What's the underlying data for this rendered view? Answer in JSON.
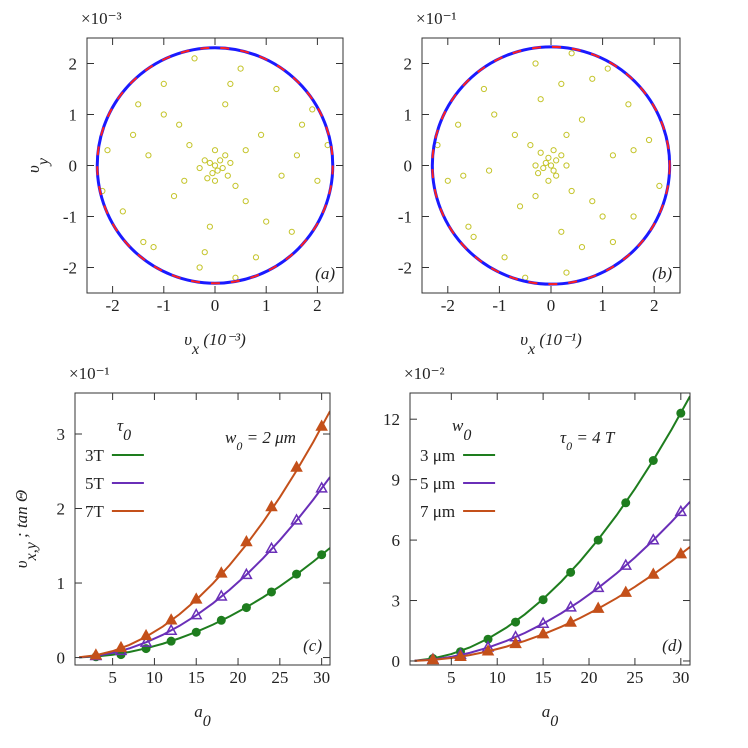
{
  "chart_data": [
    {
      "type": "scatter",
      "panel_label": "(a)",
      "multiplier": "×10⁻³",
      "x_label": [
        {
          "text": "υ"
        },
        {
          "text": "x",
          "sub": true
        },
        {
          "text": " (10⁻³)"
        }
      ],
      "y_label": [
        {
          "text": "υ"
        },
        {
          "text": "y",
          "sub": true
        }
      ],
      "xlim": [
        -2.5,
        2.5
      ],
      "ylim": [
        -2.5,
        2.5
      ],
      "xticks": [
        -2,
        -1,
        0,
        1,
        2
      ],
      "yticks": [
        -2,
        -1,
        0,
        1,
        2
      ],
      "color": "#c4c42a",
      "x": [
        0,
        0.1,
        -0.1,
        0.05,
        -0.05,
        0.15,
        -0.2,
        0.2,
        -0.15,
        0.25,
        0.3,
        -0.3,
        0,
        0,
        -1.5,
        -1,
        0.5,
        1.2,
        1.7,
        2.0,
        1.5,
        0.8,
        -0.3,
        -1.2,
        -1.8,
        -2.1,
        -0.7,
        0.9,
        0.6,
        -0.8,
        -1.3,
        1.3,
        0.2,
        -0.1,
        -1.4,
        1.9,
        -0.4,
        0.4,
        2.2,
        -2.2,
        1.0,
        -1.0,
        0.6,
        -0.5,
        0.4,
        -0.6,
        1.6,
        -1.6,
        0.3,
        -0.2
      ],
      "values": [
        0,
        0.1,
        0.05,
        -0.1,
        -0.15,
        -0.05,
        0.1,
        0.2,
        -0.25,
        -0.2,
        0.05,
        -0.05,
        0.3,
        -0.3,
        1.2,
        1.6,
        1.9,
        1.5,
        0.8,
        -0.3,
        -1.3,
        -1.8,
        -2.0,
        -1.6,
        -0.9,
        0.3,
        0.8,
        0.6,
        -0.7,
        -0.6,
        0.2,
        -0.2,
        1.2,
        -1.2,
        -1.5,
        1.1,
        2.1,
        -2.2,
        0.4,
        -0.5,
        -1.1,
        1.0,
        0.3,
        0.4,
        -0.4,
        -0.3,
        0.2,
        0.6,
        1.6,
        -1.7
      ],
      "circles": [
        {
          "color": "#1a1aff",
          "r": 2.3
        },
        {
          "color": "#ff2020",
          "r": 2.3,
          "dashed": true
        }
      ]
    },
    {
      "type": "scatter",
      "panel_label": "(b)",
      "multiplier": "×10⁻¹",
      "x_label": [
        {
          "text": "υ"
        },
        {
          "text": "x",
          "sub": true
        },
        {
          "text": " (10⁻¹)"
        }
      ],
      "xlim": [
        -2.5,
        2.5
      ],
      "ylim": [
        -2.5,
        2.5
      ],
      "xticks": [
        -2,
        -1,
        0,
        1,
        2
      ],
      "yticks": [
        -2,
        -1,
        0,
        1,
        2
      ],
      "color": "#c4c42a",
      "x": [
        0,
        0.1,
        0.05,
        -0.1,
        -0.15,
        -0.05,
        0.1,
        0.2,
        -0.25,
        -0.2,
        0.05,
        -0.05,
        0.3,
        -0.3,
        1.2,
        1.6,
        1.9,
        1.5,
        0.8,
        -0.3,
        -1.3,
        -1.8,
        -2.0,
        -1.6,
        -0.9,
        0.3,
        0.8,
        0.6,
        -0.7,
        -0.6,
        0.2,
        -0.2,
        1.2,
        -1.2,
        -1.5,
        1.1,
        2.1,
        -2.2,
        0.4,
        -0.5,
        -1.1,
        1.0,
        0.3,
        0.4,
        -0.4,
        -0.3,
        0.2,
        0.6,
        1.6,
        -1.7
      ],
      "values": [
        0,
        0.1,
        -0.1,
        0.05,
        -0.05,
        0.15,
        -0.2,
        0.2,
        -0.15,
        0.25,
        0.3,
        -0.3,
        0,
        0,
        -1.5,
        -1,
        0.5,
        1.2,
        1.7,
        2.0,
        1.5,
        0.8,
        -0.3,
        -1.2,
        -1.8,
        -2.1,
        -0.7,
        0.9,
        0.6,
        -0.8,
        -1.3,
        1.3,
        0.2,
        -0.1,
        -1.4,
        1.9,
        -0.4,
        0.4,
        2.2,
        -2.2,
        1.0,
        -1.0,
        0.6,
        -0.5,
        0.4,
        -0.6,
        1.6,
        -1.6,
        0.3,
        -0.2
      ],
      "circles": [
        {
          "color": "#1a1aff",
          "r": 2.3
        },
        {
          "color": "#ff2020",
          "r": 2.3,
          "dashed": true
        }
      ]
    },
    {
      "type": "line",
      "panel_label": "(c)",
      "multiplier": "×10⁻¹",
      "x_label": [
        {
          "text": "a"
        },
        {
          "text": "0",
          "sub": true
        }
      ],
      "y_label": [
        {
          "text": "υ"
        },
        {
          "text": "x,y",
          "sub": true
        },
        {
          "text": " ; tan Θ"
        }
      ],
      "legend_title": [
        {
          "text": "τ"
        },
        {
          "text": "0",
          "sub": true
        }
      ],
      "annotation": [
        {
          "text": "w"
        },
        {
          "text": "0",
          "sub": true
        },
        {
          "text": " = 2 μm"
        }
      ],
      "xlim": [
        0.5,
        31
      ],
      "ylim": [
        -0.1,
        3.55
      ],
      "xticks": [
        5,
        10,
        15,
        20,
        25,
        30
      ],
      "yticks": [
        0,
        1,
        2,
        3
      ],
      "x": [
        3,
        6,
        9,
        12,
        15,
        18,
        21,
        24,
        27,
        30
      ],
      "fit_x": [
        1,
        3,
        5,
        7,
        9,
        11,
        13,
        15,
        17,
        19,
        21,
        23,
        25,
        27,
        29,
        31
      ],
      "series": [
        {
          "name": "3T",
          "color": "#1e7d1e",
          "marker": "circle",
          "values": [
            0.01,
            0.04,
            0.12,
            0.22,
            0.34,
            0.5,
            0.67,
            0.88,
            1.12,
            1.38
          ],
          "fit_values": [
            0.0015,
            0.014,
            0.038,
            0.075,
            0.124,
            0.185,
            0.259,
            0.344,
            0.442,
            0.552,
            0.675,
            0.809,
            0.956,
            1.115,
            1.287,
            1.47
          ]
        },
        {
          "name": "5T",
          "color": "#6a2fb8",
          "marker": "triangle-open",
          "values": [
            0.02,
            0.09,
            0.2,
            0.36,
            0.57,
            0.82,
            1.11,
            1.46,
            1.84,
            2.27
          ],
          "fit_values": [
            0.0025,
            0.023,
            0.063,
            0.123,
            0.204,
            0.305,
            0.426,
            0.567,
            0.728,
            0.91,
            1.111,
            1.333,
            1.575,
            1.837,
            2.119,
            2.422
          ]
        },
        {
          "name": "7T",
          "color": "#c4501a",
          "marker": "triangle",
          "values": [
            0.03,
            0.13,
            0.29,
            0.5,
            0.78,
            1.13,
            1.55,
            2.02,
            2.55,
            3.1
          ],
          "fit_values": [
            0.0034,
            0.031,
            0.086,
            0.169,
            0.279,
            0.416,
            0.581,
            0.774,
            0.994,
            1.242,
            1.517,
            1.82,
            2.15,
            2.508,
            2.893,
            3.306
          ]
        }
      ]
    },
    {
      "type": "line",
      "panel_label": "(d)",
      "multiplier": "×10⁻²",
      "x_label": [
        {
          "text": "a"
        },
        {
          "text": "0",
          "sub": true
        }
      ],
      "legend_title": [
        {
          "text": "w"
        },
        {
          "text": "0",
          "sub": true
        }
      ],
      "annotation": [
        {
          "text": "τ"
        },
        {
          "text": "0",
          "sub": true
        },
        {
          "text": " = 4 T"
        }
      ],
      "xlim": [
        0.5,
        31
      ],
      "ylim": [
        -0.2,
        13.3
      ],
      "xticks": [
        5,
        10,
        15,
        20,
        25,
        30
      ],
      "yticks": [
        0,
        3,
        6,
        9,
        12
      ],
      "x": [
        3,
        6,
        9,
        12,
        15,
        18,
        21,
        24,
        27,
        30
      ],
      "fit_x": [
        1,
        3,
        5,
        7,
        9,
        11,
        13,
        15,
        17,
        19,
        21,
        23,
        25,
        27,
        29,
        31
      ],
      "series": [
        {
          "name": "3 μm",
          "color": "#1e7d1e",
          "marker": "circle",
          "values": [
            0.12,
            0.46,
            1.08,
            1.93,
            3.04,
            4.4,
            6.0,
            7.85,
            9.95,
            12.3
          ],
          "fit_values": [
            0.014,
            0.123,
            0.342,
            0.67,
            1.107,
            1.654,
            2.31,
            3.076,
            3.951,
            4.935,
            6.028,
            7.231,
            8.544,
            9.965,
            11.496,
            13.137
          ]
        },
        {
          "name": "5 μm",
          "color": "#6a2fb8",
          "marker": "triangle-open",
          "values": [
            0.07,
            0.3,
            0.67,
            1.18,
            1.85,
            2.66,
            3.63,
            4.73,
            5.99,
            7.4
          ],
          "fit_values": [
            0.008,
            0.074,
            0.206,
            0.403,
            0.666,
            0.995,
            1.389,
            1.85,
            2.376,
            2.967,
            3.625,
            4.348,
            5.138,
            5.992,
            6.913,
            7.899
          ]
        },
        {
          "name": "7 μm",
          "color": "#c4501a",
          "marker": "triangle",
          "values": [
            0.05,
            0.21,
            0.48,
            0.85,
            1.33,
            1.91,
            2.6,
            3.39,
            4.29,
            5.3
          ],
          "fit_values": [
            0.006,
            0.053,
            0.147,
            0.289,
            0.477,
            0.713,
            0.995,
            1.325,
            1.702,
            2.126,
            2.597,
            3.116,
            3.681,
            4.294,
            4.953,
            5.66
          ]
        }
      ]
    }
  ]
}
